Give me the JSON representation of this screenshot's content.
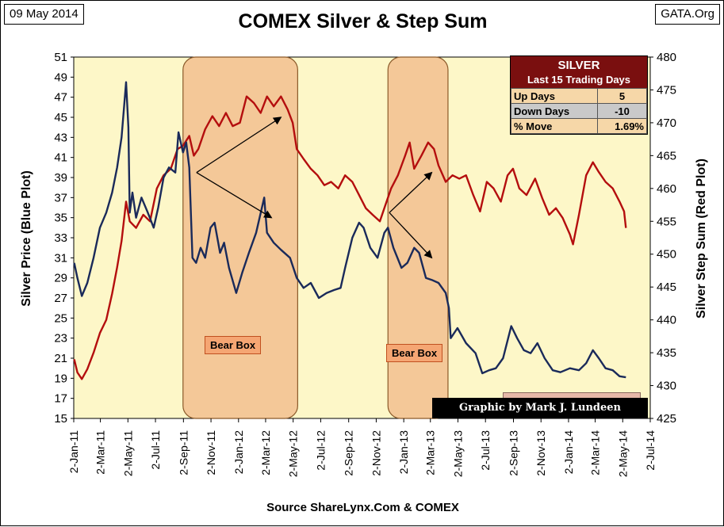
{
  "header": {
    "date": "09 May 2014",
    "site": "GATA.Org",
    "title": "COMEX Silver & Step Sum"
  },
  "footer": {
    "source": "Source ShareLynx.Com & COMEX"
  },
  "credit": "Graphic by Mark J. Lundeen",
  "stats_box": {
    "title": "SILVER",
    "subtitle": "Last 15 Trading Days",
    "rows": [
      {
        "label": "Up Days",
        "value": "5"
      },
      {
        "label": "Down Days",
        "value": "-10"
      },
      {
        "label": "% Move",
        "value": "1.69%"
      }
    ]
  },
  "annotations": {
    "bear_box_1": "Bear Box",
    "bear_box_2": "Bear Box"
  },
  "colors": {
    "plot_bg": "#fdf7c8",
    "silver_line": "#1a2a5a",
    "step_line": "#b40e0e",
    "bear_box_fill": "#f2c08f",
    "bear_box_stroke": "#8a5a2a"
  },
  "chart_data": {
    "type": "line",
    "title": "COMEX Silver & Step Sum",
    "xlabel": "",
    "ylabel": "Silver Price  (Blue Plot)",
    "y2label": "Silver Step Sum  (Red Plot)",
    "x_ticks": [
      "2-Jan-11",
      "2-Mar-11",
      "2-May-11",
      "2-Jul-11",
      "2-Sep-11",
      "2-Nov-11",
      "2-Jan-12",
      "2-Mar-12",
      "2-May-12",
      "2-Jul-12",
      "2-Sep-12",
      "2-Nov-12",
      "2-Jan-13",
      "2-Mar-13",
      "2-May-13",
      "2-Jul-13",
      "2-Sep-13",
      "2-Nov-13",
      "2-Jan-14",
      "2-Mar-14",
      "2-May-14",
      "2-Jul-14"
    ],
    "ylim": [
      15,
      51
    ],
    "y_ticks": [
      15,
      17,
      19,
      21,
      23,
      25,
      27,
      29,
      31,
      33,
      35,
      37,
      39,
      41,
      43,
      45,
      47,
      49,
      51
    ],
    "y2lim": [
      425,
      480
    ],
    "y2_ticks": [
      425,
      430,
      435,
      440,
      445,
      450,
      455,
      460,
      465,
      470,
      475,
      480
    ],
    "series": [
      {
        "name": "Silver Price (Blue Plot)",
        "axis": "left",
        "points": [
          [
            "2011-01-03",
            30.5
          ],
          [
            "2011-01-10",
            29.0
          ],
          [
            "2011-01-20",
            27.2
          ],
          [
            "2011-02-01",
            28.5
          ],
          [
            "2011-02-15",
            31.0
          ],
          [
            "2011-03-01",
            34.0
          ],
          [
            "2011-03-15",
            35.5
          ],
          [
            "2011-03-28",
            37.5
          ],
          [
            "2011-04-08",
            40.0
          ],
          [
            "2011-04-18",
            43.0
          ],
          [
            "2011-04-28",
            48.5
          ],
          [
            "2011-05-03",
            44.0
          ],
          [
            "2011-05-06",
            35.5
          ],
          [
            "2011-05-12",
            37.5
          ],
          [
            "2011-05-20",
            35.0
          ],
          [
            "2011-06-01",
            37.0
          ],
          [
            "2011-06-15",
            35.5
          ],
          [
            "2011-06-28",
            34.0
          ],
          [
            "2011-07-08",
            36.0
          ],
          [
            "2011-07-20",
            39.0
          ],
          [
            "2011-08-01",
            40.0
          ],
          [
            "2011-08-15",
            39.5
          ],
          [
            "2011-08-22",
            43.5
          ],
          [
            "2011-09-01",
            41.5
          ],
          [
            "2011-09-08",
            42.5
          ],
          [
            "2011-09-15",
            40.0
          ],
          [
            "2011-09-22",
            31.0
          ],
          [
            "2011-09-30",
            30.5
          ],
          [
            "2011-10-10",
            32.0
          ],
          [
            "2011-10-20",
            31.0
          ],
          [
            "2011-11-01",
            34.0
          ],
          [
            "2011-11-10",
            34.5
          ],
          [
            "2011-11-22",
            31.5
          ],
          [
            "2011-12-01",
            32.5
          ],
          [
            "2011-12-12",
            30.0
          ],
          [
            "2011-12-28",
            27.5
          ],
          [
            "2012-01-10",
            29.5
          ],
          [
            "2012-01-25",
            31.5
          ],
          [
            "2012-02-10",
            33.5
          ],
          [
            "2012-02-28",
            37.0
          ],
          [
            "2012-03-05",
            33.5
          ],
          [
            "2012-03-20",
            32.5
          ],
          [
            "2012-04-05",
            31.8
          ],
          [
            "2012-04-25",
            31.0
          ],
          [
            "2012-05-10",
            29.0
          ],
          [
            "2012-05-25",
            28.0
          ],
          [
            "2012-06-10",
            28.5
          ],
          [
            "2012-06-28",
            27.0
          ],
          [
            "2012-07-15",
            27.5
          ],
          [
            "2012-08-01",
            27.8
          ],
          [
            "2012-08-15",
            28.0
          ],
          [
            "2012-08-25",
            30.0
          ],
          [
            "2012-09-10",
            33.0
          ],
          [
            "2012-09-25",
            34.5
          ],
          [
            "2012-10-05",
            34.0
          ],
          [
            "2012-10-20",
            32.0
          ],
          [
            "2012-11-05",
            31.0
          ],
          [
            "2012-11-20",
            33.5
          ],
          [
            "2012-11-28",
            34.0
          ],
          [
            "2012-12-10",
            32.0
          ],
          [
            "2012-12-28",
            30.0
          ],
          [
            "2013-01-10",
            30.5
          ],
          [
            "2013-01-25",
            32.0
          ],
          [
            "2013-02-05",
            31.5
          ],
          [
            "2013-02-20",
            29.0
          ],
          [
            "2013-03-05",
            28.8
          ],
          [
            "2013-03-20",
            28.5
          ],
          [
            "2013-04-05",
            27.5
          ],
          [
            "2013-04-12",
            26.0
          ],
          [
            "2013-04-16",
            23.0
          ],
          [
            "2013-05-01",
            24.0
          ],
          [
            "2013-05-20",
            22.5
          ],
          [
            "2013-06-10",
            21.5
          ],
          [
            "2013-06-25",
            19.5
          ],
          [
            "2013-07-10",
            19.8
          ],
          [
            "2013-07-25",
            20.0
          ],
          [
            "2013-08-10",
            21.0
          ],
          [
            "2013-08-28",
            24.2
          ],
          [
            "2013-09-10",
            23.0
          ],
          [
            "2013-09-25",
            21.8
          ],
          [
            "2013-10-10",
            21.5
          ],
          [
            "2013-10-25",
            22.5
          ],
          [
            "2013-11-10",
            21.0
          ],
          [
            "2013-11-28",
            19.8
          ],
          [
            "2013-12-15",
            19.6
          ],
          [
            "2014-01-05",
            20.0
          ],
          [
            "2014-01-25",
            19.8
          ],
          [
            "2014-02-10",
            20.5
          ],
          [
            "2014-02-25",
            21.8
          ],
          [
            "2014-03-10",
            21.0
          ],
          [
            "2014-03-25",
            20.0
          ],
          [
            "2014-04-10",
            19.8
          ],
          [
            "2014-04-25",
            19.2
          ],
          [
            "2014-05-09",
            19.1
          ]
        ]
      },
      {
        "name": "Silver Step Sum (Red Plot)",
        "axis": "right",
        "points": [
          [
            "2011-01-03",
            434.0
          ],
          [
            "2011-01-10",
            432.0
          ],
          [
            "2011-01-20",
            431.0
          ],
          [
            "2011-02-01",
            432.5
          ],
          [
            "2011-02-15",
            435.0
          ],
          [
            "2011-03-01",
            438.0
          ],
          [
            "2011-03-15",
            440.0
          ],
          [
            "2011-03-28",
            444.0
          ],
          [
            "2011-04-08",
            448.0
          ],
          [
            "2011-04-18",
            452.0
          ],
          [
            "2011-04-28",
            458.0
          ],
          [
            "2011-05-06",
            455.0
          ],
          [
            "2011-05-20",
            454.0
          ],
          [
            "2011-06-05",
            456.0
          ],
          [
            "2011-06-20",
            455.0
          ],
          [
            "2011-07-05",
            460.0
          ],
          [
            "2011-07-20",
            462.0
          ],
          [
            "2011-08-05",
            463.0
          ],
          [
            "2011-08-20",
            466.0
          ],
          [
            "2011-09-01",
            466.5
          ],
          [
            "2011-09-15",
            468.0
          ],
          [
            "2011-09-25",
            465.0
          ],
          [
            "2011-10-05",
            466.0
          ],
          [
            "2011-10-20",
            469.0
          ],
          [
            "2011-11-05",
            471.0
          ],
          [
            "2011-11-20",
            469.5
          ],
          [
            "2011-12-05",
            471.5
          ],
          [
            "2011-12-20",
            469.5
          ],
          [
            "2012-01-05",
            470.0
          ],
          [
            "2012-01-20",
            474.0
          ],
          [
            "2012-02-05",
            473.0
          ],
          [
            "2012-02-20",
            471.5
          ],
          [
            "2012-03-05",
            474.0
          ],
          [
            "2012-03-20",
            472.5
          ],
          [
            "2012-04-05",
            474.0
          ],
          [
            "2012-04-20",
            472.0
          ],
          [
            "2012-05-01",
            470.0
          ],
          [
            "2012-05-10",
            466.0
          ],
          [
            "2012-05-25",
            464.5
          ],
          [
            "2012-06-10",
            463.0
          ],
          [
            "2012-06-25",
            462.0
          ],
          [
            "2012-07-10",
            460.5
          ],
          [
            "2012-07-25",
            461.0
          ],
          [
            "2012-08-10",
            460.0
          ],
          [
            "2012-08-25",
            462.0
          ],
          [
            "2012-09-10",
            461.0
          ],
          [
            "2012-09-25",
            459.0
          ],
          [
            "2012-10-10",
            457.0
          ],
          [
            "2012-10-25",
            456.0
          ],
          [
            "2012-11-10",
            455.0
          ],
          [
            "2012-11-25",
            458.0
          ],
          [
            "2012-12-05",
            460.0
          ],
          [
            "2012-12-20",
            462.0
          ],
          [
            "2013-01-05",
            465.0
          ],
          [
            "2013-01-15",
            467.0
          ],
          [
            "2013-01-25",
            463.0
          ],
          [
            "2013-02-10",
            465.0
          ],
          [
            "2013-02-25",
            467.0
          ],
          [
            "2013-03-10",
            466.0
          ],
          [
            "2013-03-20",
            463.5
          ],
          [
            "2013-04-05",
            461.0
          ],
          [
            "2013-04-20",
            462.0
          ],
          [
            "2013-05-05",
            461.5
          ],
          [
            "2013-05-20",
            462.0
          ],
          [
            "2013-06-05",
            459.0
          ],
          [
            "2013-06-20",
            456.5
          ],
          [
            "2013-07-05",
            461.0
          ],
          [
            "2013-07-20",
            460.0
          ],
          [
            "2013-08-05",
            458.0
          ],
          [
            "2013-08-20",
            462.0
          ],
          [
            "2013-09-01",
            463.0
          ],
          [
            "2013-09-15",
            460.0
          ],
          [
            "2013-10-01",
            459.0
          ],
          [
            "2013-10-20",
            461.5
          ],
          [
            "2013-11-05",
            458.5
          ],
          [
            "2013-11-20",
            456.0
          ],
          [
            "2013-12-05",
            457.0
          ],
          [
            "2013-12-20",
            455.5
          ],
          [
            "2014-01-05",
            453.0
          ],
          [
            "2014-01-12",
            451.5
          ],
          [
            "2014-01-25",
            456.0
          ],
          [
            "2014-02-10",
            462.0
          ],
          [
            "2014-02-25",
            464.0
          ],
          [
            "2014-03-10",
            462.5
          ],
          [
            "2014-03-25",
            461.0
          ],
          [
            "2014-04-10",
            460.0
          ],
          [
            "2014-04-25",
            458.0
          ],
          [
            "2014-05-05",
            456.5
          ],
          [
            "2014-05-09",
            454.0
          ]
        ]
      }
    ],
    "shaded_regions": [
      {
        "label": "Bear Box",
        "start": "2011-09-01",
        "end": "2012-05-12"
      },
      {
        "label": "Bear Box",
        "start": "2012-11-28",
        "end": "2013-04-10"
      }
    ]
  }
}
